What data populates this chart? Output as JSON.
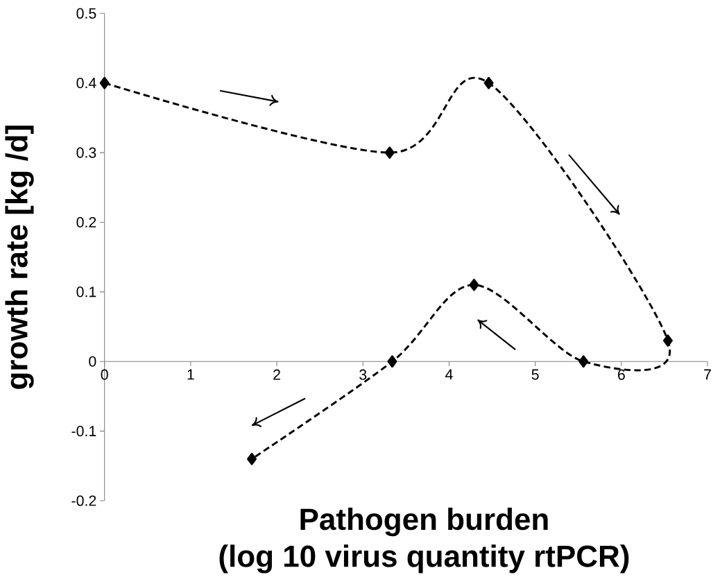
{
  "chart_data": {
    "type": "line",
    "xlabel": "Pathogen burden (log 10 virus quantity rtPCR)",
    "ylabel": "growth rate [kg /d]",
    "xlim": [
      0,
      7
    ],
    "xticks": [
      0,
      1,
      2,
      3,
      4,
      5,
      6,
      7
    ],
    "ylim": [
      -0.2,
      0.5
    ],
    "yticks": [
      -0.2,
      -0.1,
      0,
      0.1,
      0.2,
      0.3,
      0.4,
      0.5
    ],
    "grid": false,
    "marker": "diamond",
    "line_style": "dashed",
    "series": [
      {
        "color": "#000000",
        "x": [
          0,
          3.31,
          4.46,
          6.54,
          5.56,
          4.29,
          3.34,
          1.71
        ],
        "values": [
          0.4,
          0.3,
          0.4,
          0.03,
          0,
          0.11,
          0,
          -0.14
        ]
      }
    ]
  }
}
